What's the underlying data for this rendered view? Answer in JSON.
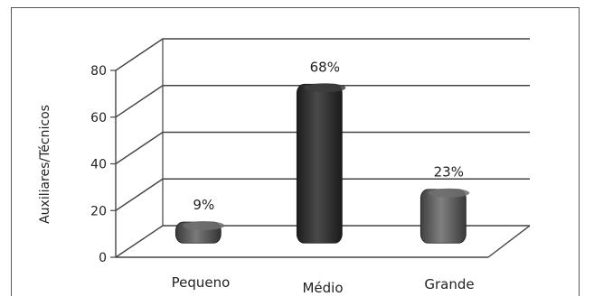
{
  "chart_data": {
    "type": "bar",
    "style": "3d",
    "categories": [
      "Pequeno",
      "Médio",
      "Grande"
    ],
    "values": [
      9,
      68,
      23
    ],
    "data_labels": [
      "9%",
      "68%",
      "23%"
    ],
    "ylabel": "Auxiliares/Técnicos",
    "ylim": [
      0,
      80
    ],
    "yticks": [
      0,
      20,
      40,
      60,
      80
    ],
    "grid": true,
    "legend": "none",
    "colors": {
      "bar_small": "#5a5a5a",
      "bar_medium": "#2e2e2e",
      "bar_large": "#616161",
      "grid": "#444444",
      "text": "#222222"
    }
  }
}
